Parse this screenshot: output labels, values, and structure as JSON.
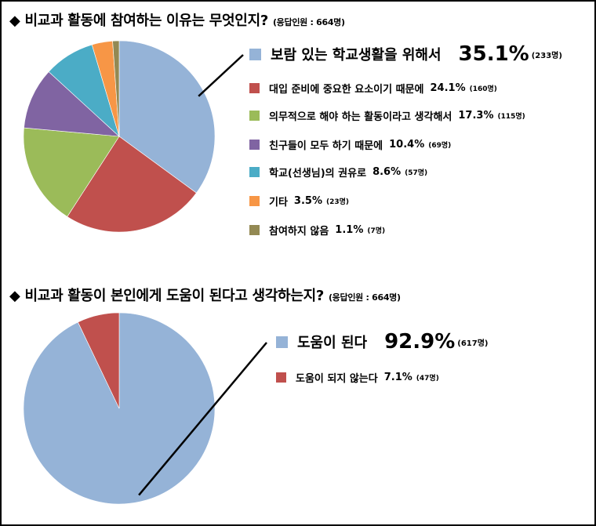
{
  "chart_data": [
    {
      "type": "pie",
      "title": "비교과 활동에 참여하는 이유는 무엇인지?",
      "note": "(응답인원 : 664명)",
      "slices": [
        {
          "label": "보람 있는 학교생활을 위해서",
          "value": 35.1,
          "pct_text": "35.1%",
          "count_text": "(233명)",
          "color": "#95B3D7"
        },
        {
          "label": "대입 준비에 중요한 요소이기 때문에",
          "value": 24.1,
          "pct_text": "24.1%",
          "count_text": "(160명)",
          "color": "#C0504D"
        },
        {
          "label": "의무적으로 해야 하는 활동이라고 생각해서",
          "value": 17.3,
          "pct_text": "17.3%",
          "count_text": "(115명)",
          "color": "#9BBB59"
        },
        {
          "label": "친구들이 모두 하기 때문에",
          "value": 10.4,
          "pct_text": "10.4%",
          "count_text": "(69명)",
          "color": "#8064A2"
        },
        {
          "label": "학교(선생님)의 권유로",
          "value": 8.6,
          "pct_text": "8.6%",
          "count_text": "(57명)",
          "color": "#4BACC6"
        },
        {
          "label": "기타",
          "value": 3.5,
          "pct_text": "3.5%",
          "count_text": "(23명)",
          "color": "#F79646"
        },
        {
          "label": "참여하지 않음",
          "value": 1.1,
          "pct_text": "1.1%",
          "count_text": "(7명)",
          "color": "#938953"
        }
      ]
    },
    {
      "type": "pie",
      "title": "비교과 활동이 본인에게 도움이 된다고 생각하는지?",
      "note": "(응답인원 : 664명)",
      "slices": [
        {
          "label": "도움이 된다",
          "value": 92.9,
          "pct_text": "92.9%",
          "count_text": "(617명)",
          "color": "#95B3D7"
        },
        {
          "label": "도움이 되지 않는다",
          "value": 7.1,
          "pct_text": "7.1%",
          "count_text": "(47명)",
          "color": "#C0504D"
        }
      ]
    }
  ]
}
